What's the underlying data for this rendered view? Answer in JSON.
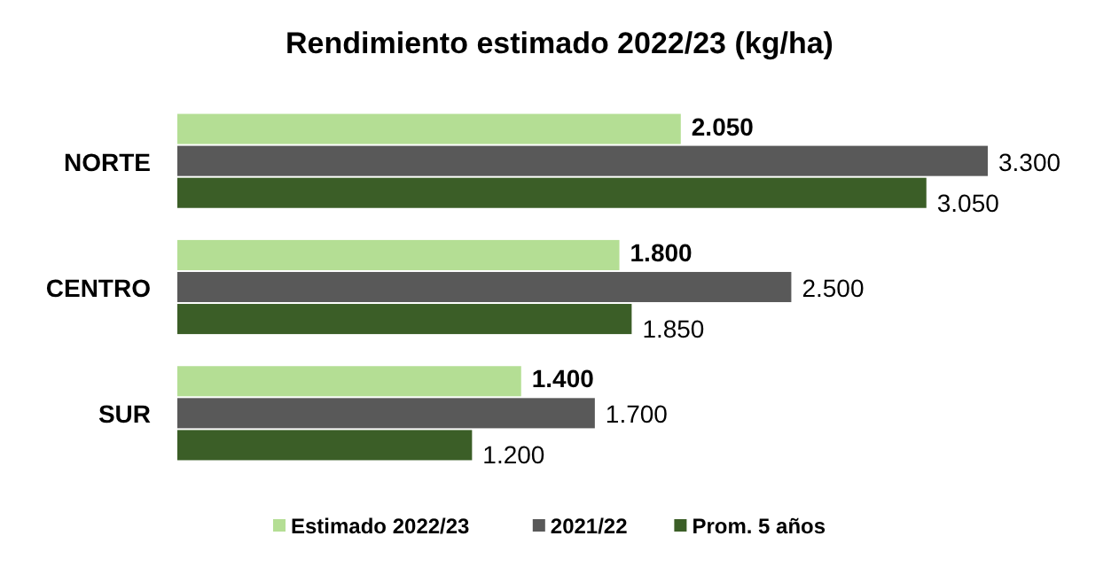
{
  "chart_data": {
    "type": "bar",
    "orientation": "horizontal",
    "title": "Rendimiento estimado 2022/23 (kg/ha)",
    "categories": [
      "NORTE",
      "CENTRO",
      "SUR"
    ],
    "legend": "bottom",
    "series": [
      {
        "name": "Estimado 2022/23",
        "color": "#b4de94",
        "values": [
          2050,
          1800,
          1400
        ],
        "value_labels": [
          "2.050",
          "1.800",
          "1.400"
        ]
      },
      {
        "name": "2021/22",
        "color": "#595959",
        "values": [
          3300,
          2500,
          1700
        ],
        "value_labels": [
          "3.300",
          "2.500",
          "1.700"
        ]
      },
      {
        "name": "Prom. 5 años",
        "color": "#3b5e27",
        "values": [
          3050,
          1850,
          1200
        ],
        "value_labels": [
          "3.050",
          "1.850",
          "1.200"
        ]
      }
    ]
  }
}
